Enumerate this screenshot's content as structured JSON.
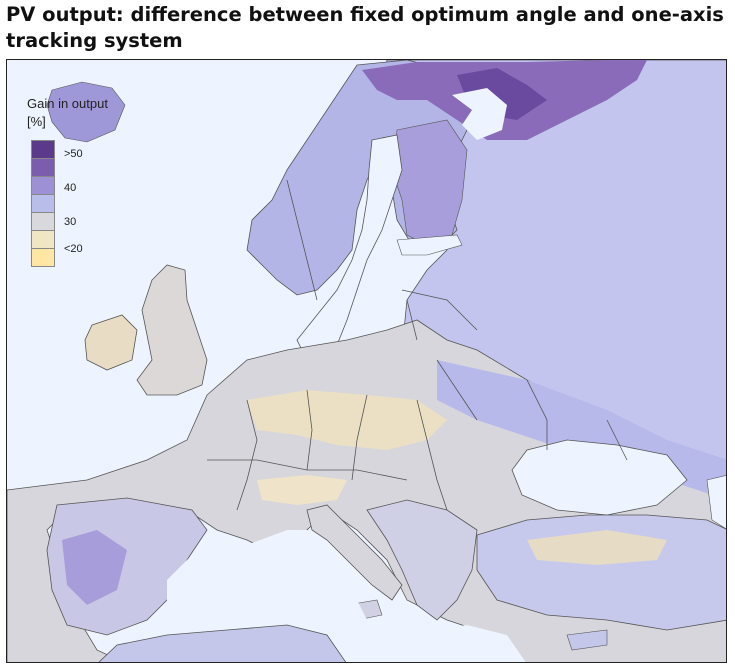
{
  "title": "PV output: difference between fixed optimum angle  and one-axis tracking system",
  "legend": {
    "title": "Gain in output [%]",
    "labels": [
      ">50",
      "40",
      "30",
      "<20"
    ],
    "colors": [
      "#5b3a8c",
      "#7c5cad",
      "#9d90d4",
      "#b9bdea",
      "#d9d8dd",
      "#f1e6c4",
      "#ffe6a3"
    ]
  },
  "colors": {
    "sea": "#eef4ff",
    "base_land": "#c9ccee",
    "grey_zone": "#d8d8de",
    "beige_zone": "#ece2c8",
    "light_purple": "#b5b7e8",
    "mid_purple": "#a196d8",
    "dark_purple": "#7e5cae",
    "darkest": "#6a4a9e",
    "border": "#555555"
  }
}
